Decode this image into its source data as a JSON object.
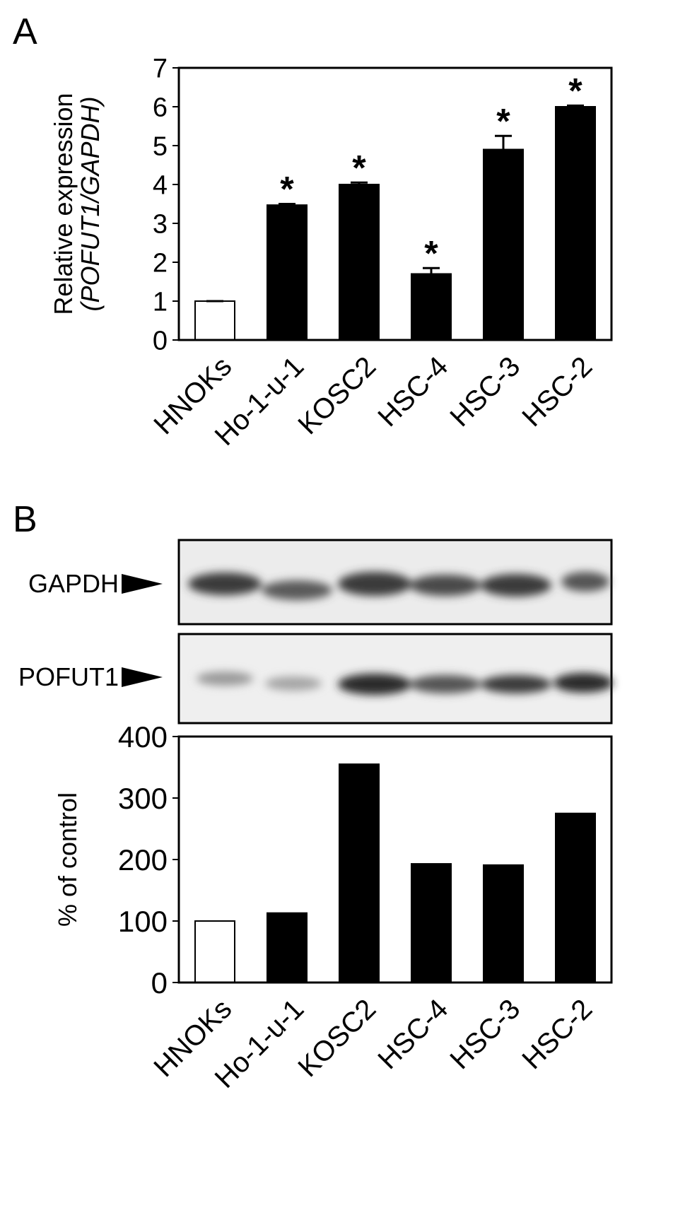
{
  "panel_labels": [
    "A",
    "B"
  ],
  "blot": {
    "labels": [
      "GAPDH",
      "POFUT1"
    ]
  },
  "chart_data": [
    {
      "type": "bar",
      "ylabel": "Relative expression",
      "ylabel2": "(POFUT1/GAPDH)",
      "categories": [
        "HNOKs",
        "Ho-1-u-1",
        "KOSC2",
        "HSC-4",
        "HSC-3",
        "HSC-2"
      ],
      "values": [
        1,
        3.47,
        4.0,
        1.7,
        4.9,
        6.0
      ],
      "errors": [
        0,
        0.03,
        0.05,
        0.15,
        0.35,
        0.03
      ],
      "annotations": [
        null,
        "*",
        "*",
        "*",
        "*",
        "*"
      ],
      "colors": [
        "#ffffff",
        "#000000",
        "#000000",
        "#000000",
        "#000000",
        "#000000"
      ],
      "ylim": [
        0,
        7
      ],
      "yticks": [
        0,
        1,
        2,
        3,
        4,
        5,
        6,
        7
      ]
    },
    {
      "type": "bar",
      "ylabel": "% of control",
      "categories": [
        "HNOKs",
        "Ho-1-u-1",
        "KOSC2",
        "HSC-4",
        "HSC-3",
        "HSC-2"
      ],
      "values": [
        100,
        113,
        355,
        193,
        191,
        275
      ],
      "colors": [
        "#ffffff",
        "#000000",
        "#000000",
        "#000000",
        "#000000",
        "#000000"
      ],
      "ylim": [
        0,
        400
      ],
      "yticks": [
        0,
        100,
        200,
        300,
        400
      ]
    }
  ]
}
